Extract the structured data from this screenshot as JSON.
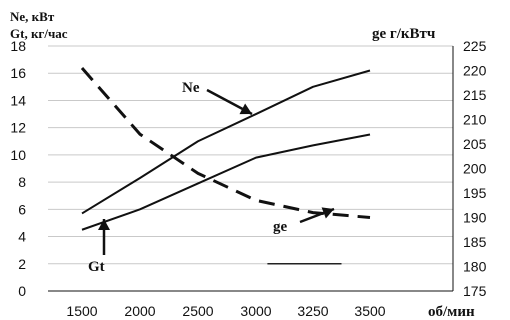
{
  "chart_data": {
    "type": "line",
    "x_tick_labels": [
      "1500",
      "2000",
      "2500",
      "3000",
      "3250",
      "3500"
    ],
    "xlabel": "об/мин",
    "ylabel_left_1": "Ne, кВт",
    "ylabel_left_2": "Gt, кг/час",
    "ylabel_right": "ge г/кВтч",
    "ylim_left": [
      0,
      18
    ],
    "ylim_right": [
      175,
      225
    ],
    "y_ticks_left": [
      0,
      2,
      4,
      6,
      8,
      10,
      12,
      14,
      16,
      18
    ],
    "y_ticks_right": [
      175,
      180,
      185,
      190,
      195,
      200,
      205,
      210,
      215,
      220,
      225
    ],
    "grid": "horizontal",
    "series": [
      {
        "name": "Ne",
        "axis": "left",
        "style": "solid",
        "values": [
          5.7,
          8.3,
          11.0,
          13.0,
          15.0,
          16.2
        ]
      },
      {
        "name": "Gt",
        "axis": "left",
        "style": "solid",
        "values": [
          4.5,
          6.0,
          7.9,
          9.8,
          10.7,
          11.5
        ]
      },
      {
        "name": "ge",
        "axis": "right",
        "style": "dashed",
        "values": [
          220.5,
          207.0,
          199.0,
          193.5,
          191.0,
          190.0
        ]
      }
    ],
    "stray_segment": {
      "axis": "left",
      "x_from": 3.2,
      "x_to": 4.5,
      "y": 2.0
    }
  }
}
